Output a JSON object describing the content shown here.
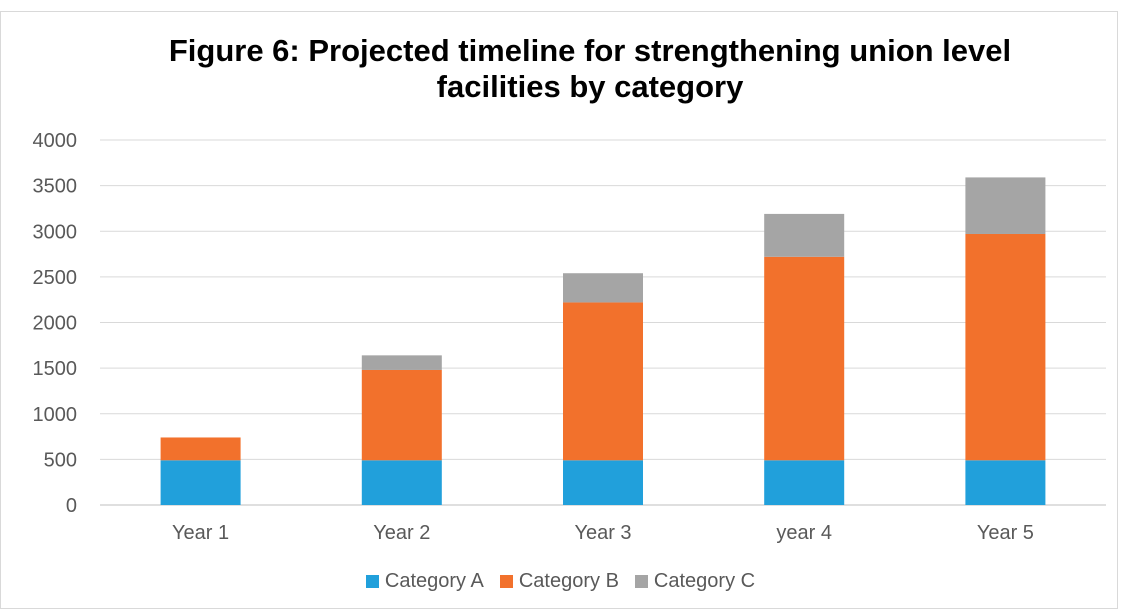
{
  "chart_data": {
    "type": "bar",
    "stacked": true,
    "title_lines": [
      "Figure 6: Projected timeline for strengthening union level",
      "facilities by category"
    ],
    "xlabel": "",
    "ylabel": "",
    "categories": [
      "Year 1",
      "Year 2",
      "Year 3",
      "year 4",
      "Year 5"
    ],
    "series": [
      {
        "name": "Category A",
        "color": "#21a0db",
        "values": [
          490,
          490,
          490,
          490,
          490
        ]
      },
      {
        "name": "Category B",
        "color": "#f2712c",
        "values": [
          250,
          990,
          1730,
          2230,
          2480
        ]
      },
      {
        "name": "Category C",
        "color": "#a5a5a5",
        "values": [
          0,
          160,
          320,
          470,
          620
        ]
      }
    ],
    "ylim": [
      0,
      4000
    ],
    "yticks": [
      0,
      500,
      1000,
      1500,
      2000,
      2500,
      3000,
      3500,
      4000
    ],
    "grid": true,
    "legend_position": "bottom"
  }
}
